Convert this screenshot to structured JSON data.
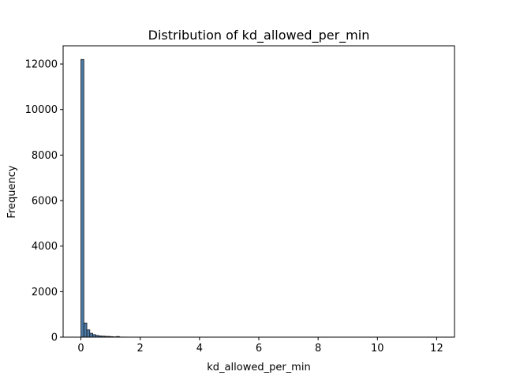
{
  "chart_data": {
    "type": "bar",
    "title": "Distribution of kd_allowed_per_min",
    "xlabel": "kd_allowed_per_min",
    "ylabel": "Frequency",
    "xlim": [
      -0.6,
      12.6
    ],
    "ylim": [
      0,
      12800
    ],
    "xticks": [
      0,
      2,
      4,
      6,
      8,
      10,
      12
    ],
    "yticks": [
      0,
      2000,
      4000,
      6000,
      8000,
      10000,
      12000
    ],
    "bin_width": 0.1,
    "bins": [
      {
        "x0": 0.0,
        "x1": 0.1,
        "count": 12200
      },
      {
        "x0": 0.1,
        "x1": 0.2,
        "count": 620
      },
      {
        "x0": 0.2,
        "x1": 0.3,
        "count": 320
      },
      {
        "x0": 0.3,
        "x1": 0.4,
        "count": 170
      },
      {
        "x0": 0.4,
        "x1": 0.5,
        "count": 110
      },
      {
        "x0": 0.5,
        "x1": 0.6,
        "count": 75
      },
      {
        "x0": 0.6,
        "x1": 0.7,
        "count": 55
      },
      {
        "x0": 0.7,
        "x1": 0.8,
        "count": 45
      },
      {
        "x0": 0.8,
        "x1": 0.9,
        "count": 38
      },
      {
        "x0": 0.9,
        "x1": 1.0,
        "count": 32
      },
      {
        "x0": 1.0,
        "x1": 1.1,
        "count": 22
      },
      {
        "x0": 1.1,
        "x1": 1.2,
        "count": 14
      },
      {
        "x0": 1.2,
        "x1": 1.3,
        "count": 28
      },
      {
        "x0": 1.3,
        "x1": 1.4,
        "count": 6
      },
      {
        "x0": 1.4,
        "x1": 1.5,
        "count": 5
      },
      {
        "x0": 1.5,
        "x1": 1.6,
        "count": 4
      },
      {
        "x0": 1.6,
        "x1": 1.7,
        "count": 3
      },
      {
        "x0": 1.8,
        "x1": 1.9,
        "count": 3
      },
      {
        "x0": 2.0,
        "x1": 2.1,
        "count": 2
      },
      {
        "x0": 2.5,
        "x1": 2.6,
        "count": 1
      },
      {
        "x0": 3.0,
        "x1": 3.1,
        "count": 1
      },
      {
        "x0": 12.0,
        "x1": 12.1,
        "count": 1
      }
    ],
    "bar_color": "#4a79a8",
    "edge_color": "#1a1a1a",
    "grid": false,
    "legend": "none"
  }
}
